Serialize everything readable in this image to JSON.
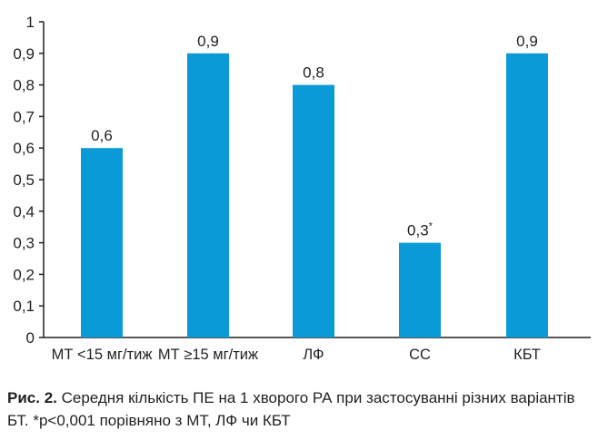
{
  "chart_data": {
    "type": "bar",
    "categories": [
      "МТ <15 мг/тиж",
      "МТ ≥15 мг/тиж",
      "ЛФ",
      "СС",
      "КБТ"
    ],
    "values": [
      0.6,
      0.9,
      0.8,
      0.3,
      0.9
    ],
    "value_labels": [
      "0,6",
      "0,9",
      "0,8",
      "0,3",
      "0,9"
    ],
    "value_label_markers": [
      "",
      "",
      "",
      "*",
      ""
    ],
    "yticks": [
      "0",
      "0,1",
      "0,2",
      "0,3",
      "0,4",
      "0,5",
      "0,6",
      "0,7",
      "0,8",
      "0,9",
      "1"
    ],
    "ylim": [
      0,
      1
    ],
    "grid": false,
    "bar_color": "#0a9ad8"
  },
  "caption": {
    "prefix": "Рис. 2.",
    "text": "Середня кількість ПЕ на 1 хворого РА при застосуванні різних варіантів БТ. *р<0,001 порівняно з МТ, ЛФ чи КБТ"
  }
}
